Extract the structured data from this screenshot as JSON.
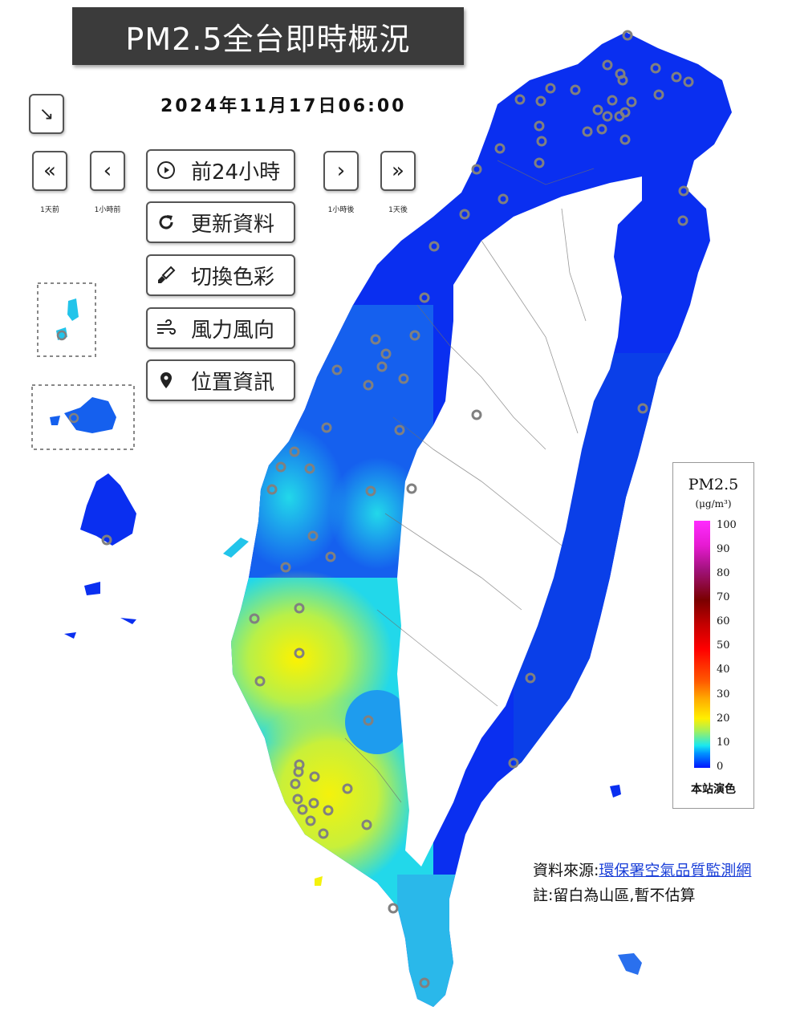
{
  "title": "PM2.5全台即時概況",
  "timestamp": "2024年11月17日06:00",
  "controls": {
    "nav_buttons": [
      {
        "icon": "double-chevron-left-icon",
        "glyph": "«",
        "label": "1天前"
      },
      {
        "icon": "chevron-left-icon",
        "glyph": "‹",
        "label": "1小時前"
      },
      {
        "icon": "chevron-right-icon",
        "glyph": "›",
        "label": "1小時後"
      },
      {
        "icon": "double-chevron-right-icon",
        "glyph": "»",
        "label": "1天後"
      }
    ],
    "collapse_glyph": "↘",
    "menu": [
      {
        "icon": "play-circle-icon",
        "label": "前24小時"
      },
      {
        "icon": "refresh-icon",
        "label": "更新資料"
      },
      {
        "icon": "paintbrush-icon",
        "label": "切換色彩"
      },
      {
        "icon": "wind-icon",
        "label": "風力風向"
      },
      {
        "icon": "location-pin-icon",
        "label": "位置資訊"
      }
    ]
  },
  "legend": {
    "title": "PM2.5",
    "unit": "(μg/m³)",
    "ticks": [
      "100",
      "90",
      "80",
      "70",
      "60",
      "50",
      "40",
      "30",
      "20",
      "10",
      "0"
    ],
    "note": "本站演色",
    "colors": {
      "low": "#0014ff",
      "mid": "#ffef00",
      "high": "#ff0000",
      "max": "#ff2bff"
    }
  },
  "footer": {
    "source_prefix": "資料來源:",
    "source_link": "環保署空氣品質監測網",
    "note": "註:留白為山區,暫不估算"
  },
  "map_colors": {
    "north": "#0a2ff0",
    "central_west": "#1560ee",
    "coast_cyan": "#20c8ee",
    "south_green": "#8ee85a",
    "south_yellow": "#f4f20c",
    "east": "#0a3fe8",
    "station_ring": "#808080"
  }
}
